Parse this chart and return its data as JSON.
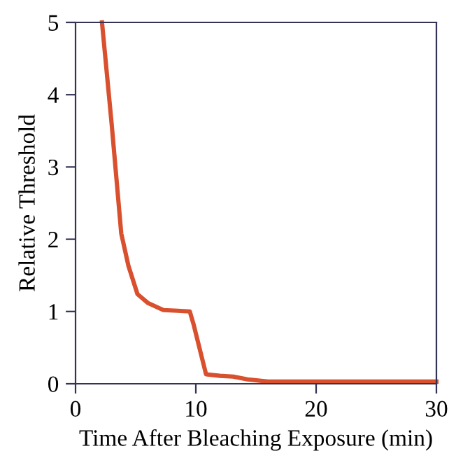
{
  "chart_data": {
    "type": "line",
    "xlabel": "Time After Bleaching Exposure (min)",
    "ylabel": "Relative Threshold",
    "x": [
      2.2,
      3.0,
      3.8,
      4.4,
      5.15,
      6.0,
      7.3,
      8.5,
      9.5,
      9.8,
      10.85,
      12.0,
      13.1,
      14.3,
      16.0,
      20.0,
      30.0
    ],
    "series": [
      {
        "color": "#d9502e",
        "values": [
          5.0,
          3.6,
          2.08,
          1.63,
          1.24,
          1.12,
          1.02,
          1.01,
          1.0,
          0.83,
          0.13,
          0.11,
          0.1,
          0.06,
          0.03,
          0.03,
          0.03
        ]
      }
    ],
    "xlim": [
      0,
      30
    ],
    "xticks": [
      0,
      10,
      20,
      30
    ],
    "ylim": [
      0,
      5
    ],
    "yticks": [
      0,
      1,
      2,
      3,
      4,
      5
    ],
    "grid": false,
    "marker": "none",
    "line_style": "solid"
  }
}
